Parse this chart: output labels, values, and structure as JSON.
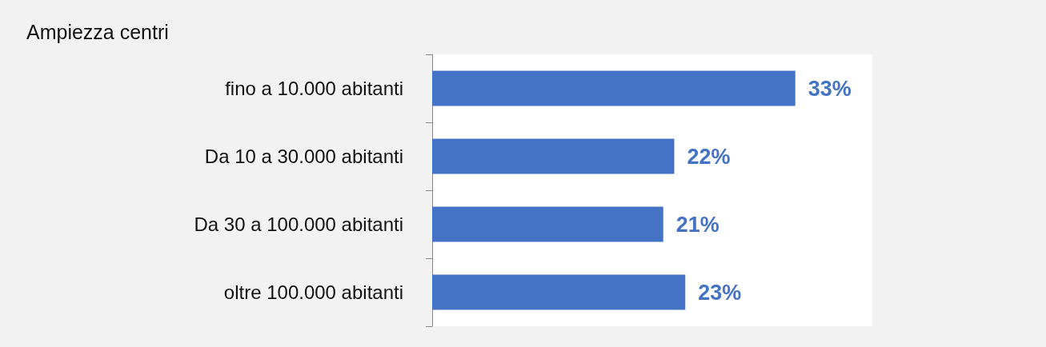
{
  "chart_data": {
    "type": "bar",
    "orientation": "horizontal",
    "title": "Ampiezza centri",
    "categories": [
      "fino a 10.000 abitanti",
      "Da 10 a 30.000 abitanti",
      "Da 30 a 100.000 abitanti",
      "oltre 100.000 abitanti"
    ],
    "values": [
      33,
      22,
      21,
      23
    ],
    "value_labels": [
      "33%",
      "22%",
      "21%",
      "23%"
    ],
    "color": "#4472c4"
  }
}
